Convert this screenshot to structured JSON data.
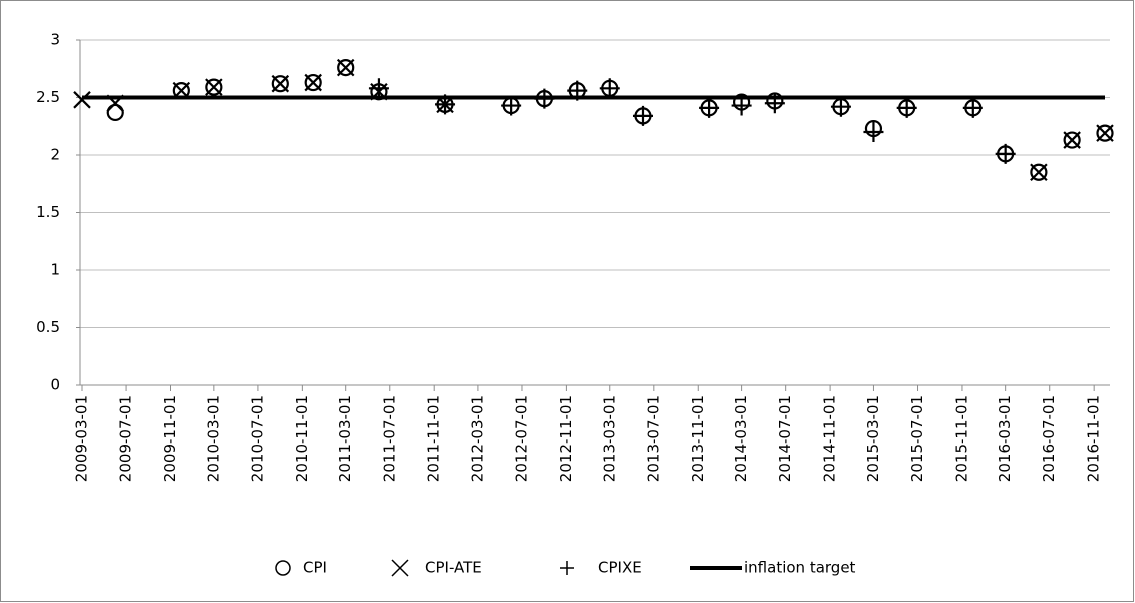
{
  "chart_data": {
    "type": "scatter",
    "x": [
      "2009-03-01",
      "2009-06-01",
      "2009-12-01",
      "2010-03-01",
      "2010-09-01",
      "2010-12-01",
      "2011-03-01",
      "2011-06-01",
      "2011-12-01",
      "2012-06-01",
      "2012-09-01",
      "2012-12-01",
      "2013-03-01",
      "2013-06-01",
      "2013-12-01",
      "2014-03-01",
      "2014-06-01",
      "2014-12-01",
      "2015-03-01",
      "2015-06-01",
      "2015-12-01",
      "2016-03-01",
      "2016-06-01",
      "2016-09-01",
      "2016-12-01"
    ],
    "series": [
      {
        "name": "CPI",
        "marker": "circle",
        "color": "#000000",
        "values": [
          null,
          2.37,
          2.56,
          2.59,
          2.62,
          2.63,
          2.76,
          2.55,
          2.44,
          2.43,
          2.49,
          2.56,
          2.58,
          2.34,
          2.41,
          2.46,
          2.47,
          2.42,
          2.23,
          2.41,
          2.41,
          2.01,
          1.85,
          2.13,
          2.19
        ]
      },
      {
        "name": "CPI-ATE",
        "marker": "x",
        "color": "#000000",
        "values": [
          2.48,
          2.45,
          2.56,
          2.59,
          2.62,
          2.63,
          2.76,
          2.55,
          2.44,
          null,
          null,
          null,
          null,
          null,
          null,
          null,
          null,
          null,
          null,
          null,
          null,
          null,
          1.85,
          2.13,
          2.19
        ]
      },
      {
        "name": "CPIXE",
        "marker": "plus",
        "color": "#000000",
        "values": [
          null,
          null,
          null,
          null,
          null,
          null,
          null,
          2.58,
          2.44,
          2.43,
          2.49,
          2.56,
          2.58,
          2.34,
          2.41,
          2.43,
          2.45,
          2.42,
          2.2,
          2.41,
          2.41,
          2.01,
          null,
          null,
          null
        ]
      },
      {
        "name": "inflation target",
        "marker": "line",
        "color": "#000000",
        "values": [
          2.5,
          2.5,
          2.5,
          2.5,
          2.5,
          2.5,
          2.5,
          2.5,
          2.5,
          2.5,
          2.5,
          2.5,
          2.5,
          2.5,
          2.5,
          2.5,
          2.5,
          2.5,
          2.5,
          2.5,
          2.5,
          2.5,
          2.5,
          2.5,
          2.5
        ]
      }
    ],
    "xlim": [
      "2009-03-01",
      "2016-12-01"
    ],
    "xticks": [
      "2009-03-01",
      "2009-07-01",
      "2009-11-01",
      "2010-03-01",
      "2010-07-01",
      "2010-11-01",
      "2011-03-01",
      "2011-07-01",
      "2011-11-01",
      "2012-03-01",
      "2012-07-01",
      "2012-11-01",
      "2013-03-01",
      "2013-07-01",
      "2013-11-01",
      "2014-03-01",
      "2014-07-01",
      "2014-11-01",
      "2015-03-01",
      "2015-07-01",
      "2015-11-01",
      "2016-03-01",
      "2016-07-01",
      "2016-11-01"
    ],
    "ylim": [
      0,
      3
    ],
    "yticks": [
      0,
      0.5,
      1,
      1.5,
      2,
      2.5,
      3
    ],
    "grid": true,
    "legend": "bottom"
  }
}
